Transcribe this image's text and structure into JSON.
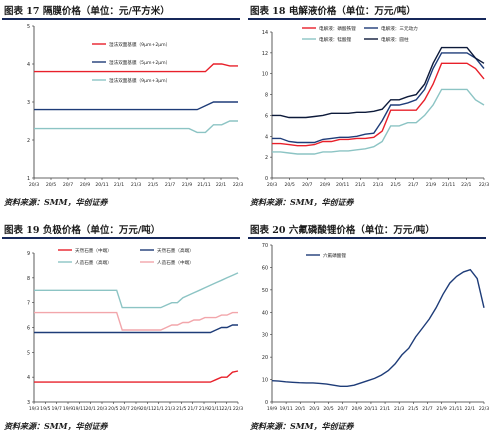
{
  "chart_data": [
    {
      "type": "line",
      "title": "图表 17 隔膜价格（单位：元/平方米）",
      "source": "资料来源：SMM，华创证券",
      "x_ticks": [
        "20/3",
        "20/5",
        "20/7",
        "20/9",
        "20/11",
        "21/1",
        "21/3",
        "21/5",
        "21/7",
        "21/9",
        "21/11",
        "22/1",
        "22/3"
      ],
      "x_count": 26,
      "ylim": [
        1,
        5
      ],
      "y_ticks": [
        1,
        2,
        3,
        4,
        5
      ],
      "series": [
        {
          "name": "湿法双面基膜（9μm+2μm）",
          "color": "#e8202a",
          "values": [
            3.8,
            3.8,
            3.8,
            3.8,
            3.8,
            3.8,
            3.8,
            3.8,
            3.8,
            3.8,
            3.8,
            3.8,
            3.8,
            3.8,
            3.8,
            3.8,
            3.8,
            3.8,
            3.8,
            3.8,
            3.8,
            3.8,
            4.0,
            4.0,
            3.95,
            3.95
          ]
        },
        {
          "name": "湿法双面基膜（5μm+2μm）",
          "color": "#1e3c78",
          "values": [
            2.8,
            2.8,
            2.8,
            2.8,
            2.8,
            2.8,
            2.8,
            2.8,
            2.8,
            2.8,
            2.8,
            2.8,
            2.8,
            2.8,
            2.8,
            2.8,
            2.8,
            2.8,
            2.8,
            2.8,
            2.8,
            2.9,
            3.0,
            3.0,
            3.0,
            3.0
          ]
        },
        {
          "name": "湿法双面基膜（9μm+3μm）",
          "color": "#8cc4c4",
          "values": [
            2.3,
            2.3,
            2.3,
            2.3,
            2.3,
            2.3,
            2.3,
            2.3,
            2.3,
            2.3,
            2.3,
            2.3,
            2.3,
            2.3,
            2.3,
            2.3,
            2.3,
            2.3,
            2.3,
            2.3,
            2.2,
            2.2,
            2.4,
            2.4,
            2.5,
            2.5
          ]
        }
      ]
    },
    {
      "type": "line",
      "title": "图表 18 电解液价格（单位：万元/吨）",
      "source": "资料来源：SMM，华创证券",
      "x_ticks": [
        "20/3",
        "20/5",
        "20/7",
        "20/9",
        "20/11",
        "21/1",
        "21/3",
        "21/5",
        "21/7",
        "21/9",
        "21/11",
        "22/1",
        "22/3"
      ],
      "x_count": 26,
      "ylim": [
        0,
        14
      ],
      "y_ticks": [
        0,
        2,
        4,
        6,
        8,
        10,
        12,
        14
      ],
      "series": [
        {
          "name": "电解液：磷酸铁锂",
          "color": "#e8202a",
          "values": [
            3.3,
            3.3,
            3.2,
            3.1,
            3.1,
            3.2,
            3.5,
            3.5,
            3.7,
            3.7,
            3.8,
            3.8,
            3.9,
            4.5,
            6.5,
            6.5,
            6.5,
            6.5,
            7.5,
            9.0,
            11.0,
            11.0,
            11.0,
            11.0,
            10.5,
            9.5
          ]
        },
        {
          "name": "电解液：三元动力",
          "color": "#1e3c78",
          "values": [
            3.8,
            3.8,
            3.5,
            3.4,
            3.4,
            3.4,
            3.7,
            3.8,
            3.9,
            3.9,
            4.0,
            4.2,
            4.3,
            5.5,
            7.0,
            7.0,
            7.2,
            7.5,
            8.5,
            10.5,
            12.0,
            12.0,
            12.0,
            12.0,
            11.5,
            10.5
          ]
        },
        {
          "name": "电解液：锰酸锂",
          "color": "#8cc4c4",
          "values": [
            2.5,
            2.5,
            2.4,
            2.3,
            2.3,
            2.3,
            2.5,
            2.5,
            2.6,
            2.6,
            2.7,
            2.8,
            3.0,
            3.5,
            5.0,
            5.0,
            5.3,
            5.3,
            6.0,
            7.0,
            8.5,
            8.5,
            8.5,
            8.5,
            7.5,
            7.0
          ]
        },
        {
          "name": "电解液：圆柱",
          "color": "#0d1a3a",
          "values": [
            6.0,
            6.0,
            5.8,
            5.8,
            5.8,
            5.9,
            6.0,
            6.2,
            6.2,
            6.2,
            6.3,
            6.3,
            6.4,
            6.6,
            7.5,
            7.5,
            7.8,
            8.0,
            9.0,
            11.0,
            12.5,
            12.5,
            12.5,
            12.5,
            11.5,
            11.0
          ]
        }
      ]
    },
    {
      "type": "line",
      "title": "图表 19 负极价格（单位：万元/吨）",
      "source": "资料来源：SMM，华创证券",
      "x_ticks": [
        "19/3",
        "19/5",
        "19/7",
        "19/9",
        "19/11",
        "20/1",
        "20/3",
        "20/5",
        "20/7",
        "20/9",
        "20/11",
        "21/1",
        "21/3",
        "21/5",
        "21/7",
        "21/9",
        "21/11",
        "22/1",
        "22/3"
      ],
      "x_count": 38,
      "ylim": [
        3,
        9
      ],
      "y_ticks": [
        3,
        4,
        5,
        6,
        7,
        8,
        9
      ],
      "series": [
        {
          "name": "天然石墨（中端）",
          "color": "#e8202a",
          "values": [
            3.8,
            3.8,
            3.8,
            3.8,
            3.8,
            3.8,
            3.8,
            3.8,
            3.8,
            3.8,
            3.8,
            3.8,
            3.8,
            3.8,
            3.8,
            3.8,
            3.8,
            3.8,
            3.8,
            3.8,
            3.8,
            3.8,
            3.8,
            3.8,
            3.8,
            3.8,
            3.8,
            3.8,
            3.8,
            3.8,
            3.8,
            3.8,
            3.8,
            3.9,
            4.0,
            4.0,
            4.2,
            4.25
          ]
        },
        {
          "name": "天然石墨（高端）",
          "color": "#1e3c78",
          "values": [
            5.8,
            5.8,
            5.8,
            5.8,
            5.8,
            5.8,
            5.8,
            5.8,
            5.8,
            5.8,
            5.8,
            5.8,
            5.8,
            5.8,
            5.8,
            5.8,
            5.8,
            5.8,
            5.8,
            5.8,
            5.8,
            5.8,
            5.8,
            5.8,
            5.8,
            5.8,
            5.8,
            5.8,
            5.8,
            5.8,
            5.8,
            5.8,
            5.8,
            5.9,
            6.0,
            6.0,
            6.1,
            6.1
          ]
        },
        {
          "name": "人造石墨（高端）",
          "color": "#8cc4c4",
          "values": [
            7.5,
            7.5,
            7.5,
            7.5,
            7.5,
            7.5,
            7.5,
            7.5,
            7.5,
            7.5,
            7.5,
            7.5,
            7.5,
            7.5,
            7.5,
            7.5,
            6.8,
            6.8,
            6.8,
            6.8,
            6.8,
            6.8,
            6.8,
            6.8,
            6.9,
            7.0,
            7.0,
            7.2,
            7.3,
            7.4,
            7.5,
            7.6,
            7.7,
            7.8,
            7.9,
            8.0,
            8.1,
            8.2
          ]
        },
        {
          "name": "人造石墨（中端）",
          "color": "#f2a6ab",
          "values": [
            6.6,
            6.6,
            6.6,
            6.6,
            6.6,
            6.6,
            6.6,
            6.6,
            6.6,
            6.6,
            6.6,
            6.6,
            6.6,
            6.6,
            6.6,
            6.6,
            5.9,
            5.9,
            5.9,
            5.9,
            5.9,
            5.9,
            5.9,
            5.9,
            6.0,
            6.1,
            6.1,
            6.2,
            6.2,
            6.3,
            6.3,
            6.4,
            6.4,
            6.4,
            6.5,
            6.5,
            6.6,
            6.6
          ]
        }
      ]
    },
    {
      "type": "line",
      "title": "图表 20 六氟磷酸锂价格（单位：万元/吨）",
      "source": "资料来源：SMM，华创证券",
      "x_ticks": [
        "19/9",
        "19/11",
        "20/1",
        "20/3",
        "20/5",
        "20/7",
        "20/9",
        "20/11",
        "21/1",
        "21/3",
        "21/5",
        "21/7",
        "21/9",
        "21/11",
        "22/1",
        "22/3"
      ],
      "x_count": 32,
      "ylim": [
        0,
        70
      ],
      "y_ticks": [
        0,
        10,
        20,
        30,
        40,
        50,
        60,
        70
      ],
      "series": [
        {
          "name": "六氟磷酸锂",
          "color": "#1e3c78",
          "values": [
            9.5,
            9.3,
            9.0,
            8.8,
            8.6,
            8.5,
            8.5,
            8.3,
            8.0,
            7.5,
            7.0,
            7.0,
            7.5,
            8.5,
            9.5,
            10.5,
            12.0,
            14.0,
            17.0,
            21.0,
            24.0,
            29.0,
            33.0,
            37.0,
            42.0,
            48.0,
            53.0,
            56.0,
            58.0,
            59.0,
            55.0,
            42.0
          ]
        }
      ]
    }
  ]
}
